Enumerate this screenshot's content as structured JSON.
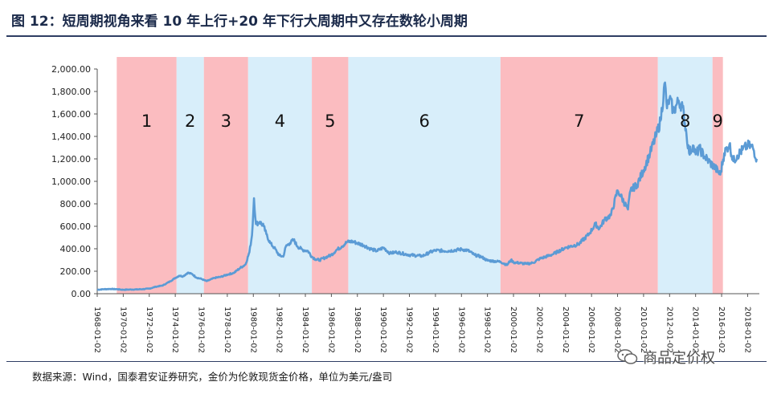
{
  "figure_title": "图 12：短周期视角来看 10 年上行+20 年下行大周期中又存在数轮小周期",
  "source_note": "数据来源：Wind，国泰君安证券研究，金价为伦敦现货金价格，单位为美元/盎司",
  "watermark": {
    "text": "商品定价权",
    "icon": "wechat-icon"
  },
  "colors": {
    "up_shade": "#fbbcc0",
    "down_shade": "#d8eefa",
    "line": "#5b9bd5",
    "title": "#1b2a4a"
  },
  "chart_data": {
    "type": "line",
    "title": "",
    "xlabel": "",
    "ylabel": "",
    "ylim": [
      0,
      2000
    ],
    "yticks": [
      "0.00",
      "200.00",
      "400.00",
      "600.00",
      "800.00",
      "1,000.00",
      "1,200.00",
      "1,400.00",
      "1,600.00",
      "1,800.00",
      "2,000.00"
    ],
    "xticks": [
      "1968-01-02",
      "1970-01-02",
      "1972-01-02",
      "1974-01-02",
      "1976-01-02",
      "1978-01-02",
      "1980-01-02",
      "1982-01-02",
      "1984-01-02",
      "1986-01-02",
      "1988-01-02",
      "1990-01-02",
      "1992-01-02",
      "1994-01-02",
      "1996-01-02",
      "1998-01-02",
      "2000-01-02",
      "2002-01-02",
      "2004-01-02",
      "2006-01-02",
      "2008-01-02",
      "2010-01-02",
      "2012-01-02",
      "2014-01-02",
      "2016-01-02",
      "2018-01-02"
    ],
    "periods": [
      {
        "label": "1",
        "start": 1969.5,
        "end": 1974.1,
        "phase": "up"
      },
      {
        "label": "2",
        "start": 1974.1,
        "end": 1976.2,
        "phase": "down"
      },
      {
        "label": "3",
        "start": 1976.2,
        "end": 1979.6,
        "phase": "up"
      },
      {
        "label": "4",
        "start": 1979.6,
        "end": 1984.5,
        "phase": "down"
      },
      {
        "label": "5",
        "start": 1984.5,
        "end": 1987.3,
        "phase": "up"
      },
      {
        "label": "6",
        "start": 1987.3,
        "end": 1999.0,
        "phase": "down"
      },
      {
        "label": "7",
        "start": 1999.0,
        "end": 2011.1,
        "phase": "up"
      },
      {
        "label": "8",
        "start": 2011.1,
        "end": 2015.3,
        "phase": "down"
      },
      {
        "label": "9",
        "start": 2015.3,
        "end": 2016.1,
        "phase": "up"
      }
    ],
    "series": [
      {
        "x": [
          1968.0,
          1968.5,
          1969.0,
          1969.5,
          1970.0,
          1970.5,
          1971.0,
          1971.5,
          1972.0,
          1972.5,
          1973.0,
          1973.3,
          1973.6,
          1974.0,
          1974.3,
          1974.6,
          1974.95,
          1975.3,
          1975.6,
          1976.0,
          1976.4,
          1976.7,
          1977.0,
          1977.5,
          1978.0,
          1978.5,
          1979.0,
          1979.4,
          1979.7,
          1979.9,
          1980.05,
          1980.2,
          1980.5,
          1980.8,
          1981.0,
          1981.3,
          1981.6,
          1982.0,
          1982.3,
          1982.5,
          1982.8,
          1983.1,
          1983.4,
          1983.8,
          1984.2,
          1984.5,
          1984.8,
          1985.1,
          1985.5,
          1986.0,
          1986.4,
          1986.8,
          1987.2,
          1987.6,
          1988.0,
          1988.5,
          1989.0,
          1989.5,
          1990.0,
          1990.5,
          1991.0,
          1992.0,
          1993.0,
          1993.6,
          1994.0,
          1995.0,
          1996.0,
          1996.5,
          1997.0,
          1997.5,
          1998.0,
          1999.0,
          1999.5,
          1999.8,
          2000.0,
          2001.0,
          2001.5,
          2002.0,
          2003.0,
          2004.0,
          2005.0,
          2005.8,
          2006.3,
          2006.6,
          2007.0,
          2007.5,
          2008.0,
          2008.2,
          2008.8,
          2009.0,
          2009.5,
          2010.0,
          2010.5,
          2011.0,
          2011.3,
          2011.65,
          2011.8,
          2012.0,
          2012.3,
          2012.7,
          2013.0,
          2013.3,
          2013.5,
          2013.8,
          2014.0,
          2014.3,
          2014.7,
          2015.0,
          2015.5,
          2015.9,
          2016.2,
          2016.6,
          2016.9,
          2017.2,
          2017.6,
          2018.0,
          2018.4,
          2018.7
        ],
        "y": [
          35,
          40,
          42,
          40,
          35,
          37,
          38,
          40,
          45,
          62,
          72,
          90,
          110,
          140,
          160,
          155,
          186,
          175,
          145,
          132,
          112,
          125,
          140,
          150,
          170,
          185,
          230,
          260,
          370,
          520,
          850,
          620,
          640,
          600,
          530,
          450,
          410,
          340,
          330,
          420,
          450,
          480,
          420,
          390,
          380,
          330,
          305,
          300,
          320,
          345,
          390,
          420,
          460,
          465,
          450,
          430,
          400,
          380,
          410,
          360,
          370,
          345,
          335,
          370,
          385,
          380,
          395,
          385,
          345,
          330,
          295,
          285,
          255,
          300,
          280,
          265,
          275,
          310,
          350,
          410,
          440,
          530,
          620,
          580,
          660,
          700,
          920,
          880,
          750,
          920,
          970,
          1100,
          1250,
          1420,
          1540,
          1880,
          1650,
          1740,
          1620,
          1720,
          1660,
          1420,
          1250,
          1320,
          1240,
          1290,
          1220,
          1180,
          1120,
          1060,
          1250,
          1330,
          1180,
          1230,
          1280,
          1320,
          1300,
          1200
        ]
      }
    ]
  }
}
